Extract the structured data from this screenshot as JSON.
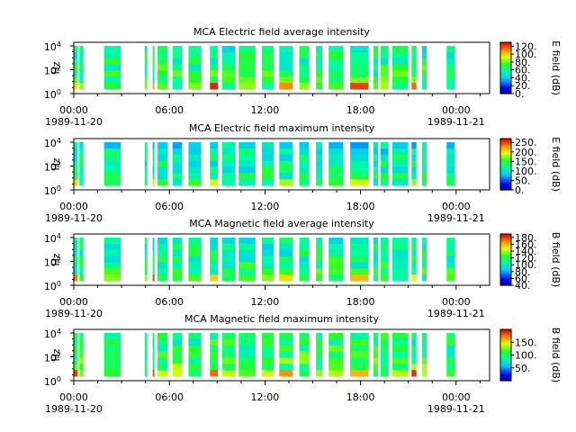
{
  "chart_data": [
    {
      "type": "heatmap",
      "title": "MCA  Electric field average intensity",
      "ylabel": "Hz",
      "cbar_label": "E field (dB)",
      "cbar_range": [
        0,
        130
      ],
      "cbar_ticks": [
        "0.",
        "20.",
        "40.",
        "60.",
        "80.",
        "100.",
        "120."
      ],
      "x_ticks": [
        "00:00",
        "06:00",
        "12:00",
        "18:00",
        "00:00"
      ],
      "x_dates": [
        "1989-11-20",
        "1989-11-21"
      ],
      "y_ticks": [
        "0",
        "2",
        "4"
      ],
      "y_scale": "log",
      "palette": "rainbow-low-to-high",
      "base_level": 0.45
    },
    {
      "type": "heatmap",
      "title": "MCA  Electric field maximum intensity",
      "ylabel": "Hz",
      "cbar_label": "E field (dB)",
      "cbar_range": [
        0,
        270
      ],
      "cbar_ticks": [
        "0.",
        "50.",
        "100.",
        "150.",
        "200.",
        "250."
      ],
      "x_ticks": [
        "00:00",
        "06:00",
        "12:00",
        "18:00",
        "00:00"
      ],
      "x_dates": [
        "1989-11-20",
        "1989-11-21"
      ],
      "y_ticks": [
        "0",
        "2",
        "4"
      ],
      "y_scale": "log",
      "palette": "rainbow-low-to-high",
      "base_level": 0.38
    },
    {
      "type": "heatmap",
      "title": "MCA  Magnetic field average intensity",
      "ylabel": "Hz",
      "cbar_label": "B field (dB)",
      "cbar_range": [
        40,
        190
      ],
      "cbar_ticks": [
        "40.",
        "60.",
        "80.",
        "100.",
        "120.",
        "140.",
        "160.",
        "180."
      ],
      "x_ticks": [
        "00:00",
        "06:00",
        "12:00",
        "18:00",
        "00:00"
      ],
      "x_dates": [
        "1989-11-20",
        "1989-11-21"
      ],
      "y_ticks": [
        "0",
        "2",
        "4"
      ],
      "y_scale": "log",
      "palette": "rainbow-low-to-high",
      "base_level": 0.42
    },
    {
      "type": "heatmap",
      "title": "MCA  Magnetic field maximum intensity",
      "ylabel": "Hz",
      "cbar_label": "B field (dB)",
      "cbar_range": [
        0,
        200
      ],
      "cbar_ticks": [
        "50.",
        "100.",
        "150."
      ],
      "x_ticks": [
        "00:00",
        "06:00",
        "12:00",
        "18:00",
        "00:00"
      ],
      "x_dates": [
        "1989-11-20",
        "1989-11-21"
      ],
      "y_ticks": [
        "0",
        "2",
        "4"
      ],
      "y_scale": "log",
      "palette": "rainbow-low-to-high",
      "base_level": 0.48
    }
  ],
  "data_segments_hours": [
    [
      0.0,
      0.25
    ],
    [
      0.35,
      0.6
    ],
    [
      1.9,
      2.95
    ],
    [
      4.45,
      4.6
    ],
    [
      4.95,
      5.05
    ],
    [
      5.25,
      5.9
    ],
    [
      6.2,
      6.8
    ],
    [
      7.2,
      8.0
    ],
    [
      8.55,
      9.05
    ],
    [
      9.3,
      10.15
    ],
    [
      10.35,
      11.4
    ],
    [
      11.8,
      12.55
    ],
    [
      12.9,
      13.75
    ],
    [
      14.15,
      14.75
    ],
    [
      15.2,
      15.6
    ],
    [
      16.0,
      16.9
    ],
    [
      17.35,
      18.5
    ],
    [
      18.8,
      19.1
    ],
    [
      19.25,
      19.75
    ],
    [
      20.0,
      21.0
    ],
    [
      21.2,
      21.5
    ],
    [
      21.85,
      22.15
    ],
    [
      23.4,
      23.9
    ]
  ]
}
